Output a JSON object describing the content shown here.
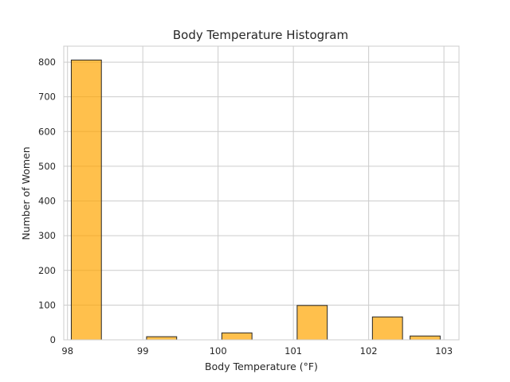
{
  "chart_data": {
    "type": "bar",
    "title": "Body Temperature Histogram",
    "xlabel": "Body Temperature (°F)",
    "ylabel": "Number of Women",
    "bins": [
      {
        "start": 98.05,
        "end": 98.45,
        "count": 806
      },
      {
        "start": 98.55,
        "end": 98.95,
        "count": 0
      },
      {
        "start": 99.05,
        "end": 99.45,
        "count": 9
      },
      {
        "start": 99.55,
        "end": 99.95,
        "count": 0
      },
      {
        "start": 100.05,
        "end": 100.45,
        "count": 20
      },
      {
        "start": 100.55,
        "end": 100.95,
        "count": 0
      },
      {
        "start": 101.05,
        "end": 101.45,
        "count": 99
      },
      {
        "start": 101.55,
        "end": 101.95,
        "count": 0
      },
      {
        "start": 102.05,
        "end": 102.45,
        "count": 66
      },
      {
        "start": 102.55,
        "end": 102.95,
        "count": 11
      }
    ],
    "xlim": [
      97.95,
      103.2
    ],
    "ylim": [
      0,
      846
    ],
    "xticks": [
      98,
      99,
      100,
      101,
      102,
      103
    ],
    "yticks": [
      0,
      100,
      200,
      300,
      400,
      500,
      600,
      700,
      800
    ],
    "bar_color": "#ffa500",
    "edge_color": "#262626",
    "grid": true,
    "legend": "none"
  }
}
